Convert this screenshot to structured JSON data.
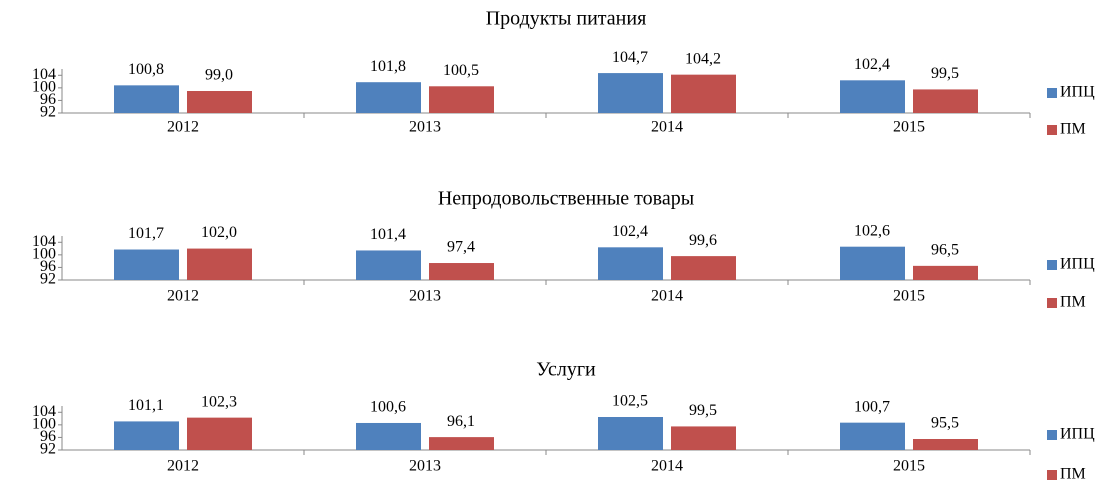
{
  "chart_data": [
    {
      "type": "bar",
      "title": "Продукты питания",
      "categories": [
        "2012",
        "2013",
        "2014",
        "2015"
      ],
      "series": [
        {
          "name": "ИПЦ",
          "color": "#4f81bd",
          "values": [
            100.8,
            101.8,
            104.7,
            102.4
          ],
          "value_labels": [
            "100,8",
            "101,8",
            "104,7",
            "102,4"
          ]
        },
        {
          "name": "ПМ",
          "color": "#c0504d",
          "values": [
            99.0,
            100.5,
            104.2,
            99.5
          ],
          "value_labels": [
            "99,0",
            "100,5",
            "104,2",
            "99,5"
          ]
        }
      ],
      "ylim": [
        92,
        106
      ],
      "yticks": [
        92,
        96,
        100,
        104
      ],
      "legend": "right"
    },
    {
      "type": "bar",
      "title": "Непродовольственные товары",
      "categories": [
        "2012",
        "2013",
        "2014",
        "2015"
      ],
      "series": [
        {
          "name": "ИПЦ",
          "color": "#4f81bd",
          "values": [
            101.7,
            101.4,
            102.4,
            102.6
          ],
          "value_labels": [
            "101,7",
            "101,4",
            "102,4",
            "102,6"
          ]
        },
        {
          "name": "ПМ",
          "color": "#c0504d",
          "values": [
            102.0,
            97.4,
            99.6,
            96.5
          ],
          "value_labels": [
            "102,0",
            "97,4",
            "99,6",
            "96,5"
          ]
        }
      ],
      "ylim": [
        92,
        106
      ],
      "yticks": [
        92,
        96,
        100,
        104
      ],
      "legend": "right"
    },
    {
      "type": "bar",
      "title": "Услуги",
      "categories": [
        "2012",
        "2013",
        "2014",
        "2015"
      ],
      "series": [
        {
          "name": "ИПЦ",
          "color": "#4f81bd",
          "values": [
            101.1,
            100.6,
            102.5,
            100.7
          ],
          "value_labels": [
            "101,1",
            "100,6",
            "102,5",
            "100,7"
          ]
        },
        {
          "name": "ПМ",
          "color": "#c0504d",
          "values": [
            102.3,
            96.1,
            99.5,
            95.5
          ],
          "value_labels": [
            "102,3",
            "96,1",
            "99,5",
            "95,5"
          ]
        }
      ],
      "ylim": [
        92,
        106
      ],
      "yticks": [
        92,
        96,
        100,
        104
      ],
      "legend": "right"
    }
  ]
}
